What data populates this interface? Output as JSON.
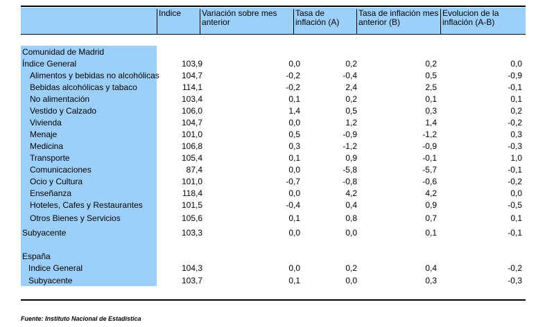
{
  "header": {
    "col_indice": "Indice",
    "col_var": "Variación sobre mes anterior",
    "col_tasa": "Tasa de inflación (A)",
    "col_tasa_ant": "Tasa de inflación mes anterior (B)",
    "col_evol": "Evolucion de la inflación (A-B)"
  },
  "madrid": {
    "section": "Comunidad de Madrid",
    "rows": [
      {
        "label": "Índice General",
        "indice": "103,9",
        "var": "0,0",
        "tasa": "0,2",
        "tasa_ant": "0,2",
        "evol": "0,0"
      },
      {
        "label": "Alimentos y bebidas no alcohólicas",
        "indice": "104,7",
        "var": "-0,2",
        "tasa": "-0,4",
        "tasa_ant": "0,5",
        "evol": "-0,9"
      },
      {
        "label": "Bebidas alcohólicas y tabaco",
        "indice": "114,1",
        "var": "-0,2",
        "tasa": "2,4",
        "tasa_ant": "2,5",
        "evol": "-0,1"
      },
      {
        "label": "No alimentación",
        "indice": "103,4",
        "var": "0,1",
        "tasa": "0,2",
        "tasa_ant": "0,1",
        "evol": "0,1"
      },
      {
        "label": "Vestido y Calzado",
        "indice": "106,0",
        "var": "1,4",
        "tasa": "0,5",
        "tasa_ant": "0,3",
        "evol": "0,2"
      },
      {
        "label": "Vivienda",
        "indice": "104,7",
        "var": "0,0",
        "tasa": "1,2",
        "tasa_ant": "1,4",
        "evol": "-0,2"
      },
      {
        "label": "Menaje",
        "indice": "101,0",
        "var": "0,5",
        "tasa": "-0,9",
        "tasa_ant": "-1,2",
        "evol": "0,3"
      },
      {
        "label": "Medicina",
        "indice": "106,8",
        "var": "0,3",
        "tasa": "-1,2",
        "tasa_ant": "-0,9",
        "evol": "-0,3"
      },
      {
        "label": "Transporte",
        "indice": "105,4",
        "var": "0,1",
        "tasa": "0,9",
        "tasa_ant": "-0,1",
        "evol": "1,0"
      },
      {
        "label": "Comunicaciones",
        "indice": "87,4",
        "var": "0,0",
        "tasa": "-5,8",
        "tasa_ant": "-5,7",
        "evol": "-0,1"
      },
      {
        "label": "Ocio y Cultura",
        "indice": "101,0",
        "var": "-0,7",
        "tasa": "-0,8",
        "tasa_ant": "-0,6",
        "evol": "-0,2"
      },
      {
        "label": "Enseñanza",
        "indice": "118,4",
        "var": "0,0",
        "tasa": "4,2",
        "tasa_ant": "4,2",
        "evol": "0,0"
      },
      {
        "label": "Hoteles, Cafes y Restaurantes",
        "indice": "101,5",
        "var": "-0,4",
        "tasa": "0,4",
        "tasa_ant": "0,9",
        "evol": "-0,5"
      },
      {
        "label": "Otros Bienes y Servicios",
        "indice": "105,6",
        "var": "0,1",
        "tasa": "0,8",
        "tasa_ant": "0,7",
        "evol": "0,1"
      },
      {
        "label": "Subyacente",
        "indice": "103,3",
        "var": "0,0",
        "tasa": "0,0",
        "tasa_ant": "0,1",
        "evol": "-0,1"
      }
    ]
  },
  "espana": {
    "section": "España",
    "rows": [
      {
        "label": "Indice General",
        "indice": "104,3",
        "var": "0,0",
        "tasa": "0,2",
        "tasa_ant": "0,4",
        "evol": "-0,2"
      },
      {
        "label": "Subyacente",
        "indice": "103,7",
        "var": "0,1",
        "tasa": "0,0",
        "tasa_ant": "0,3",
        "evol": "-0,3"
      }
    ]
  },
  "source": "Fuente: Instituto Nacional de Estadística",
  "colors": {
    "highlight": "#9ccffa"
  }
}
